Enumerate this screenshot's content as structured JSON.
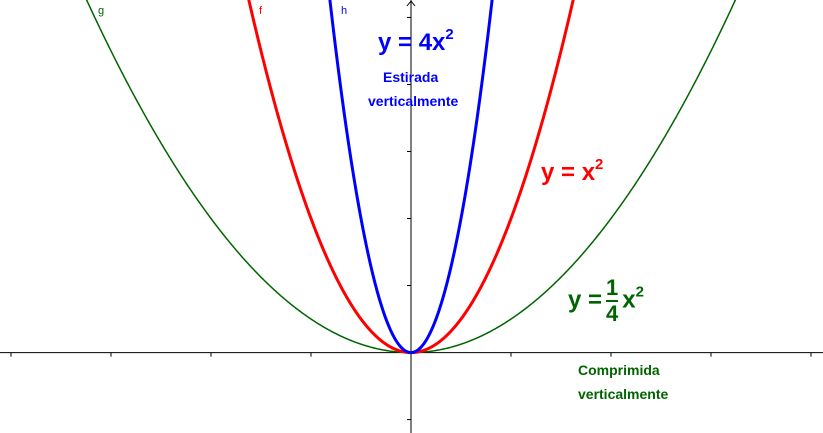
{
  "chart_data": {
    "type": "line",
    "xlim": [
      -4.11,
      4.12
    ],
    "ylim": [
      -0.6,
      2.63
    ],
    "x_tick_step": 1,
    "y_tick_step": 0.5,
    "grid": false,
    "tick_labels": false,
    "series": [
      {
        "name": "g",
        "expression": "y = 1/4 x^2",
        "coefficient": 0.25,
        "color": "#006400"
      },
      {
        "name": "f",
        "expression": "y = x^2",
        "coefficient": 1,
        "color": "#ff0000"
      },
      {
        "name": "h",
        "expression": "y = 4x^2",
        "coefficient": 4,
        "color": "#0000ff"
      }
    ]
  },
  "labels": {
    "g": "g",
    "f": "f",
    "h": "h",
    "eq_h": {
      "lhs": "y = 4x",
      "exp": "2"
    },
    "eq_f": {
      "lhs": "y = x",
      "exp": "2"
    },
    "eq_g": {
      "lhs": "y =",
      "num": "1",
      "den": "4",
      "var": "x",
      "exp": "2"
    },
    "stretched": [
      "Estirada",
      "verticalmente"
    ],
    "compressed": [
      "Comprimida",
      "verticalmente"
    ]
  }
}
